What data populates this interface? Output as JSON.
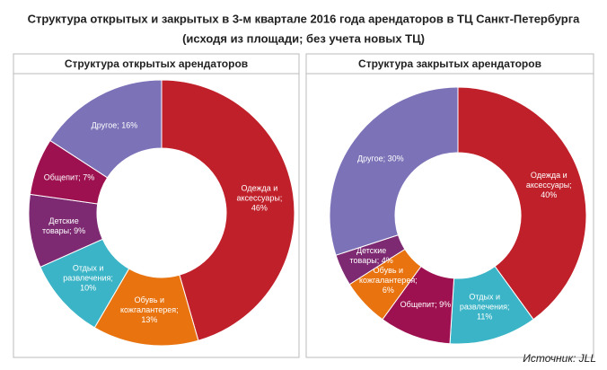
{
  "title": "Структура открытых и закрытых в 3-м квартале 2016 года арендаторов в ТЦ Санкт-Петербурга",
  "subtitle": "(исходя из площади; без учета новых ТЦ)",
  "source": "Источник: JLL",
  "chart_data": [
    {
      "type": "pie",
      "title": "Структура открытых арендаторов",
      "values": [
        46,
        13,
        10,
        9,
        7,
        16
      ],
      "value_labels": [
        "Одежда и аксессуары; 46%",
        "Обувь и кожгалантерея; 13%",
        "Отдых и развлечения; 10%",
        "Детские товары; 9%",
        "Общепит; 7%",
        "Другое; 16%"
      ],
      "colors": [
        "#c0202a",
        "#e8730f",
        "#3ab4c6",
        "#7d2a72",
        "#9e1150",
        "#7b72b8"
      ]
    },
    {
      "type": "pie",
      "title": "Структура закрытых арендаторов",
      "values": [
        40,
        11,
        9,
        6,
        4,
        30
      ],
      "value_labels": [
        "Одежда и аксессуары; 40%",
        "Отдых и развлечения; 11%",
        "Общепит; 9%",
        "Обувь и кожгалантерея; 6%",
        "Детские товары; 4%",
        "Другое; 30%"
      ],
      "colors": [
        "#c0202a",
        "#3ab4c6",
        "#9e1150",
        "#e8730f",
        "#7d2a72",
        "#7b72b8"
      ]
    }
  ]
}
